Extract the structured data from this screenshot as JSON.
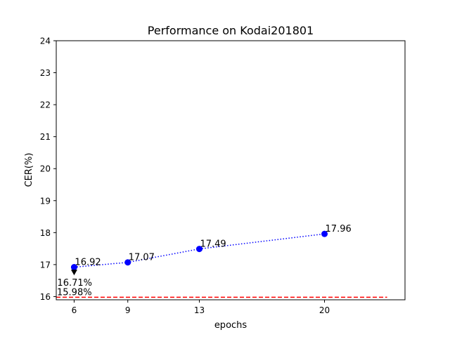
{
  "chart_data": {
    "type": "line",
    "title": "Performance on Kodai201801",
    "xlabel": "epochs",
    "ylabel": "CER(%)",
    "xlim": [
      5,
      24.5
    ],
    "ylim": [
      15.9,
      24
    ],
    "xticks": [
      6,
      9,
      13,
      20
    ],
    "yticks": [
      16,
      17,
      18,
      19,
      20,
      21,
      22,
      23,
      24
    ],
    "grid": false,
    "series": [
      {
        "x": [
          6,
          9,
          13,
          20
        ],
        "y": [
          16.92,
          17.07,
          17.49,
          17.96
        ],
        "labels": [
          "16.92",
          "17.07",
          "17.49",
          "17.96"
        ],
        "color": "#0000ff",
        "line_style": "dotted",
        "marker": "circle"
      }
    ],
    "baseline": {
      "y": 15.98,
      "label": "15.98%",
      "color": "#ff0000",
      "line_style": "dashed"
    },
    "annotation": {
      "text": "16.71%",
      "x": 6,
      "y": 16.71,
      "from_y": 16.92,
      "color": "#000000"
    }
  }
}
